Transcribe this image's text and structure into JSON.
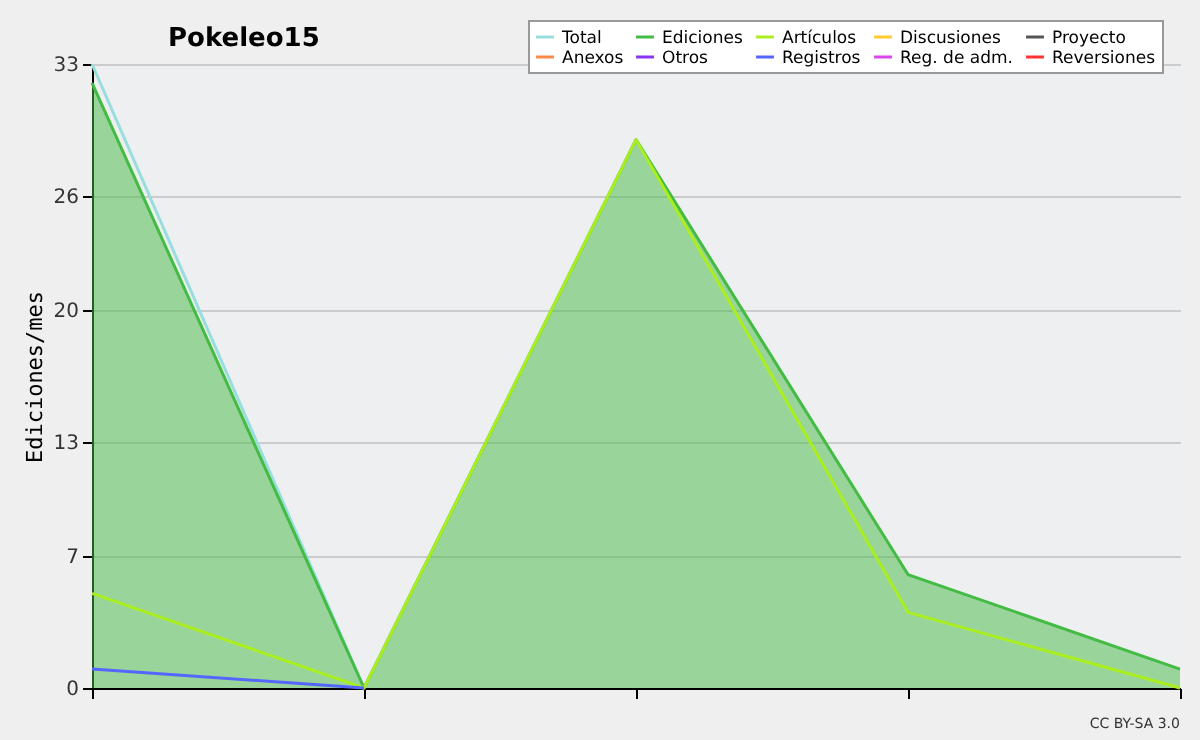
{
  "chart_data": {
    "type": "line",
    "title": "Pokeleo15",
    "ylabel": "Ediciones/mes",
    "categories": [
      null,
      null,
      null,
      null,
      null
    ],
    "series": [
      {
        "name": "Total",
        "color": "#99dddd",
        "values": [
          33,
          0,
          null,
          null,
          null
        ]
      },
      {
        "name": "Ediciones",
        "color": "#44bb44",
        "type": "area",
        "values": [
          32,
          0,
          29,
          6,
          1
        ]
      },
      {
        "name": "Artículos",
        "color": "#aaee22",
        "values": [
          5,
          0,
          29,
          4,
          0
        ]
      },
      {
        "name": "Discusiones",
        "color": "#ffcc33",
        "values": [
          null,
          null,
          null,
          null,
          null
        ]
      },
      {
        "name": "Proyecto",
        "color": "#555555",
        "values": [
          null,
          null,
          null,
          null,
          null
        ]
      },
      {
        "name": "Anexos",
        "color": "#ff8844",
        "values": [
          null,
          null,
          null,
          null,
          null
        ]
      },
      {
        "name": "Otros",
        "color": "#8833ee",
        "values": [
          null,
          null,
          null,
          null,
          null
        ]
      },
      {
        "name": "Registros",
        "color": "#5566ff",
        "values": [
          1,
          0,
          null,
          null,
          null
        ]
      },
      {
        "name": "Reg. de adm.",
        "color": "#dd44ee",
        "values": [
          null,
          null,
          null,
          null,
          null
        ]
      },
      {
        "name": "Reversiones",
        "color": "#ff3333",
        "values": [
          null,
          null,
          null,
          null,
          null
        ]
      }
    ],
    "ylim": [
      0,
      33
    ],
    "yticks": [
      0,
      7,
      13,
      20,
      26,
      33
    ],
    "grid": "y",
    "legend": "top right",
    "tick_labels": "y",
    "annotations": [
      "CC BY-SA 3.0"
    ]
  }
}
